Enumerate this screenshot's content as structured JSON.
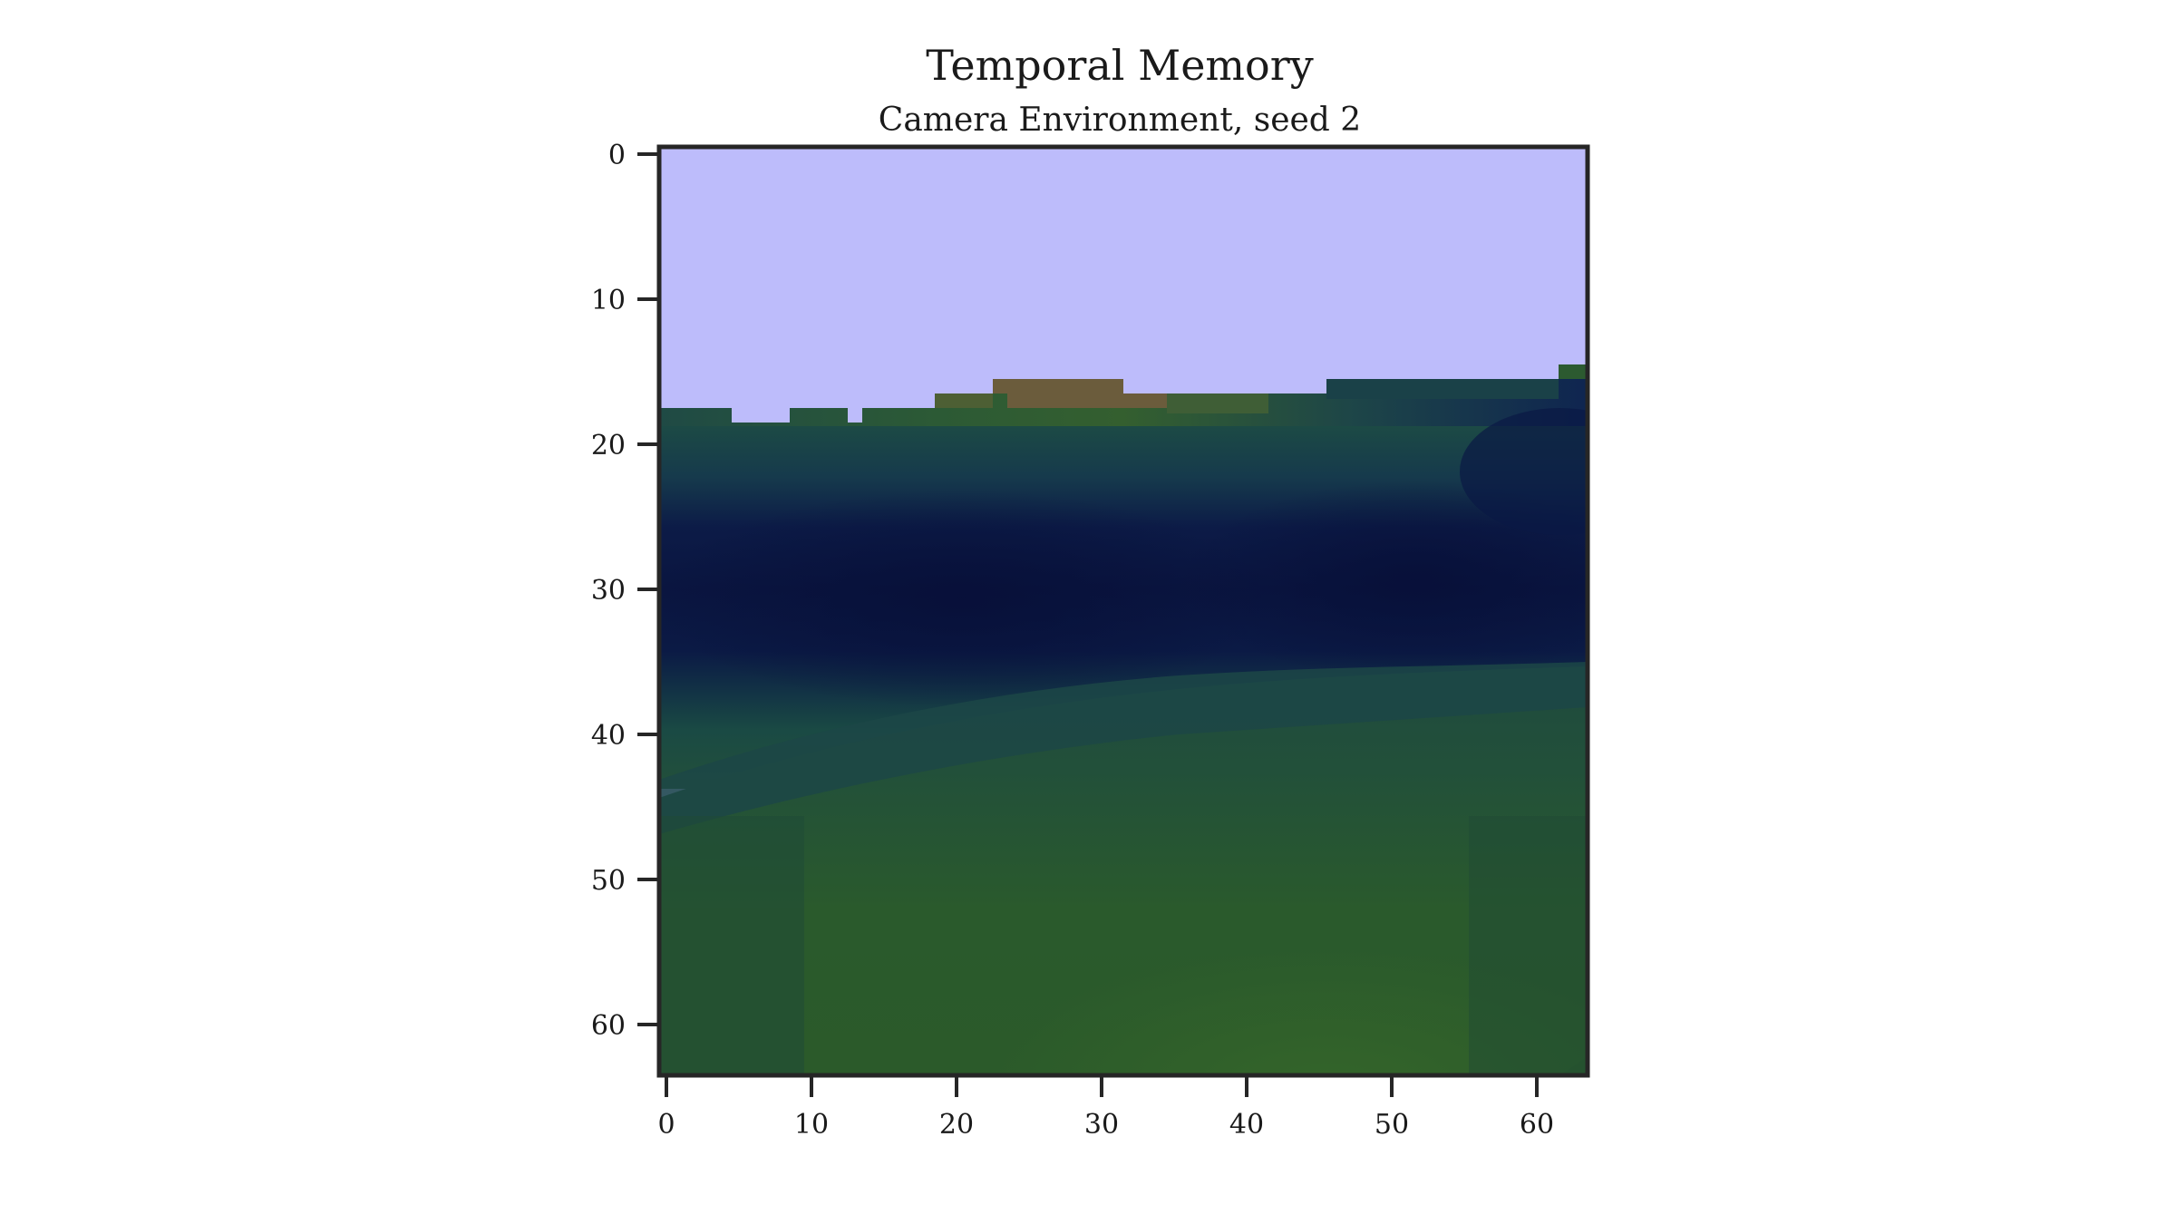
{
  "figure": {
    "title": "Temporal Memory",
    "subtitle": "Camera Environment, seed 2"
  },
  "image": {
    "description_size": [
      64,
      64
    ],
    "x_ticks": [
      "0",
      "10",
      "20",
      "30",
      "40",
      "50",
      "60"
    ],
    "y_ticks": [
      "0",
      "10",
      "20",
      "30",
      "40",
      "50",
      "60"
    ],
    "colors": {
      "sky": "#bdbcfb",
      "ground_far": "#6b5c3c",
      "water_dark": "#0a1540",
      "grass": "#2c5a2b",
      "teal": "#1f4a4a",
      "axis": "#262626"
    }
  }
}
